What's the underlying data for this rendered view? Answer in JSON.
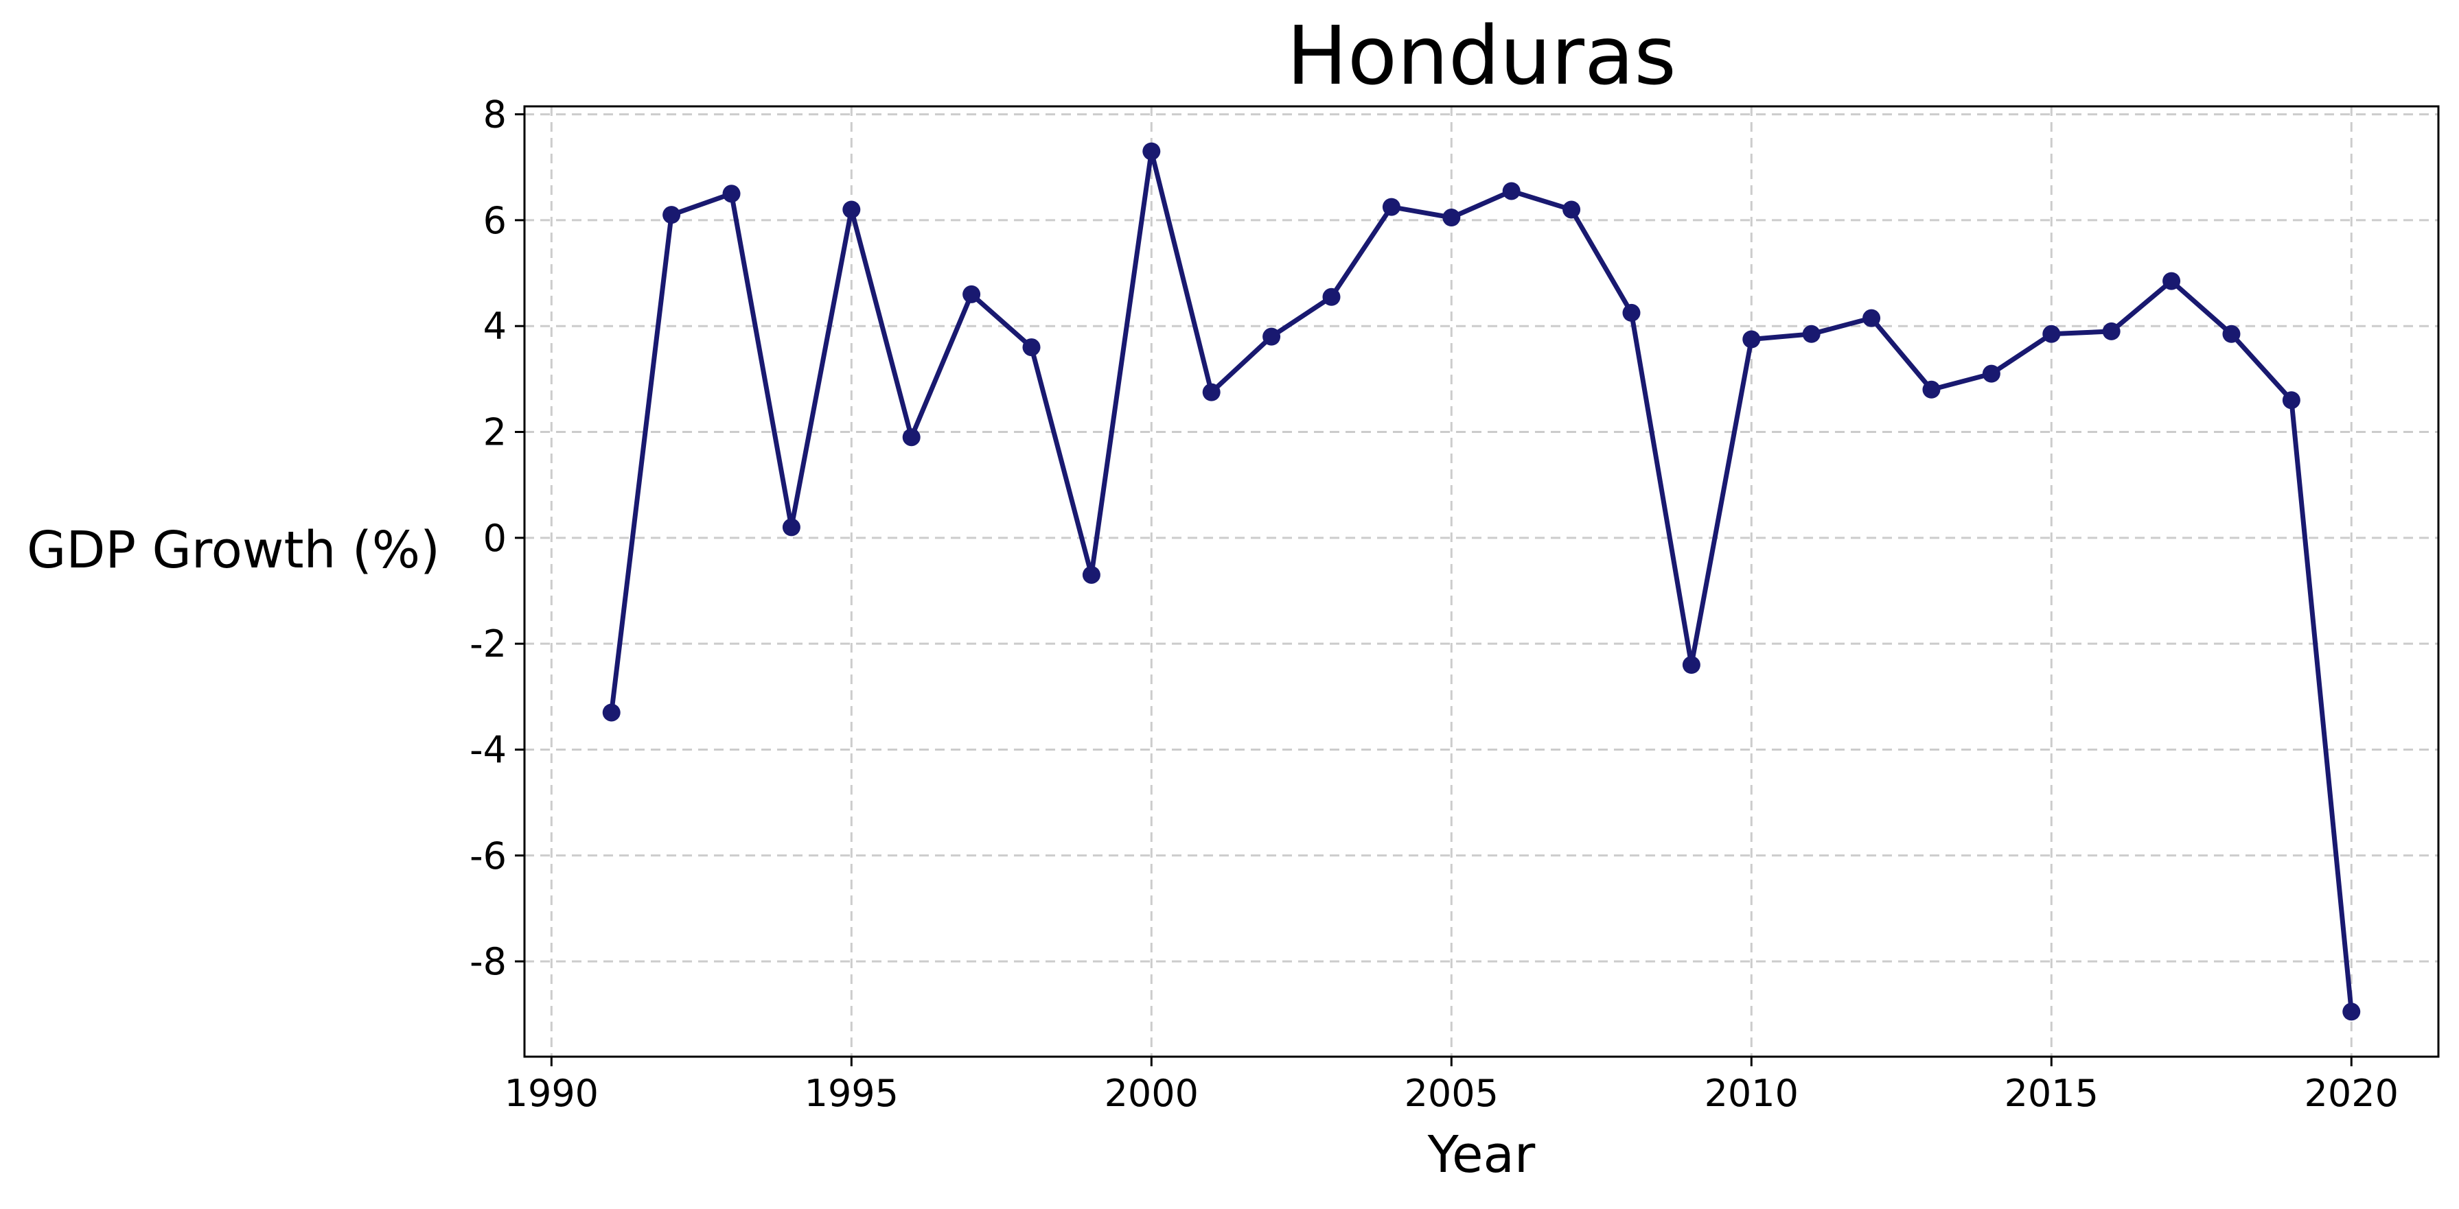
{
  "chart_data": {
    "type": "line",
    "title": "Honduras",
    "xlabel": "Year",
    "ylabel": "GDP Growth (%)",
    "xlim": [
      1989.55,
      2021.45
    ],
    "ylim": [
      -9.8,
      8.15
    ],
    "xticks": [
      1990,
      1995,
      2000,
      2005,
      2010,
      2015,
      2020
    ],
    "yticks": [
      -8,
      -6,
      -4,
      -2,
      0,
      2,
      4,
      6,
      8
    ],
    "grid": true,
    "line_color": "#191970",
    "series": [
      {
        "x": [
          1991,
          1992,
          1993,
          1994,
          1995,
          1996,
          1997,
          1998,
          1999,
          2000,
          2001,
          2002,
          2003,
          2004,
          2005,
          2006,
          2007,
          2008,
          2009,
          2010,
          2011,
          2012,
          2013,
          2014,
          2015,
          2016,
          2017,
          2018,
          2019,
          2020
        ],
        "values": [
          -3.3,
          6.1,
          6.5,
          0.2,
          6.2,
          1.9,
          4.6,
          3.6,
          -0.7,
          7.3,
          2.75,
          3.8,
          4.55,
          6.25,
          6.05,
          6.55,
          6.2,
          4.25,
          -2.4,
          3.75,
          3.85,
          4.15,
          2.8,
          3.1,
          3.85,
          3.9,
          4.85,
          3.85,
          2.6,
          -8.95
        ]
      }
    ]
  }
}
